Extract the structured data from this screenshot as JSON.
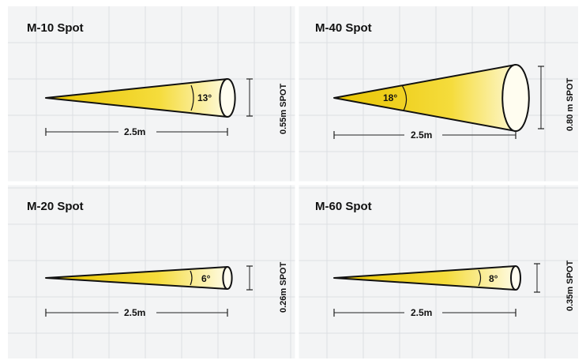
{
  "panels": [
    {
      "title": "M-10 Spot",
      "angle_label": "13°",
      "distance_label": "2.5m",
      "spot_label": "0.55m  SPOT"
    },
    {
      "title": "M-40 Spot",
      "angle_label": "18°",
      "distance_label": "2.5m",
      "spot_label": "0.80 m  SPOT"
    },
    {
      "title": "M-20 Spot",
      "angle_label": "6°",
      "distance_label": "2.5m",
      "spot_label": "0.26m  SPOT"
    },
    {
      "title": "M-60 Spot",
      "angle_label": "8°",
      "distance_label": "2.5m",
      "spot_label": "0.35m  SPOT"
    }
  ],
  "colors": {
    "beam_start": "#e8c400",
    "beam_mid": "#f5dc3c",
    "beam_end": "#fffdf0",
    "outline": "#111111",
    "panel_background": "#f3f4f5",
    "grid": "#dcdfe2"
  }
}
